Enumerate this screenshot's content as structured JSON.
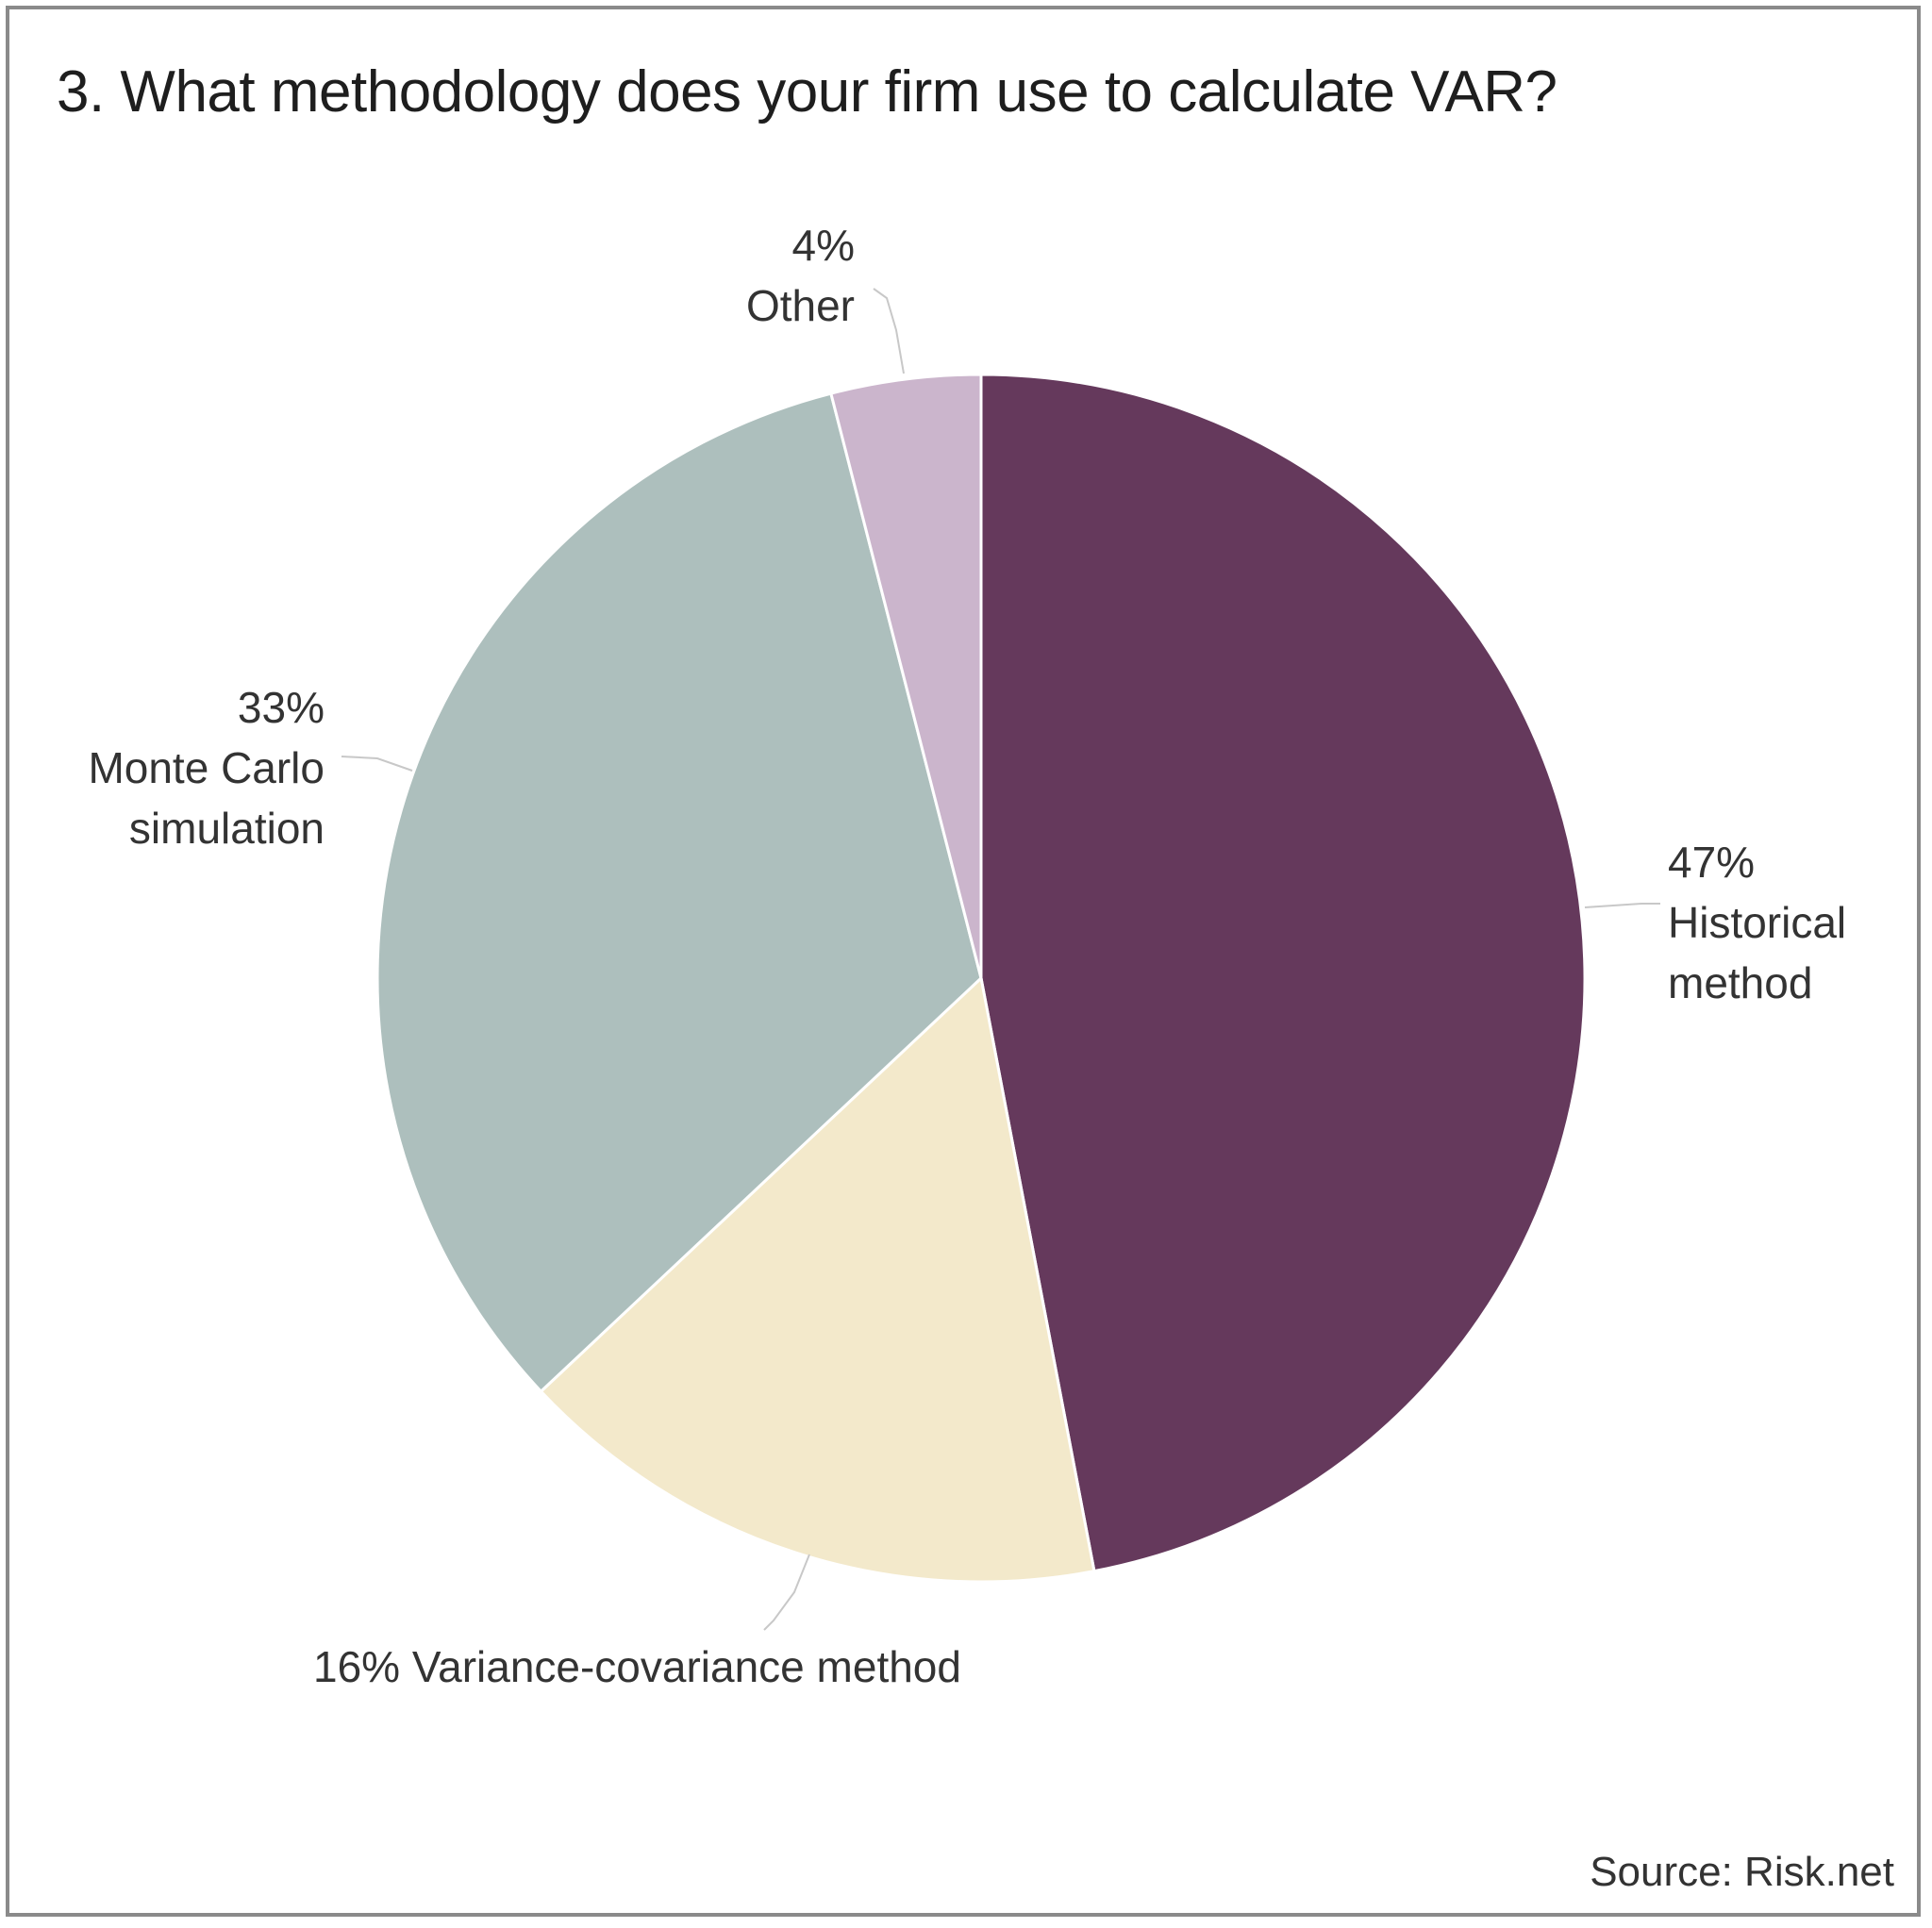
{
  "chart_data": {
    "type": "pie",
    "title": "3. What methodology does your firm use to calculate VAR?",
    "source": "Source: Risk.net",
    "slices": [
      {
        "label_lines": [
          "47%",
          "Historical",
          "method"
        ],
        "value": 47,
        "color": "#65395c"
      },
      {
        "label_lines": [
          "16% Variance-covariance method"
        ],
        "value": 16,
        "color": "#f3e9cb"
      },
      {
        "label_lines": [
          "33%",
          "Monte Carlo",
          "simulation"
        ],
        "value": 33,
        "color": "#adbfbd"
      },
      {
        "label_lines": [
          "4%",
          "Other"
        ],
        "value": 4,
        "color": "#cbb5cc"
      }
    ],
    "legend": "none"
  }
}
